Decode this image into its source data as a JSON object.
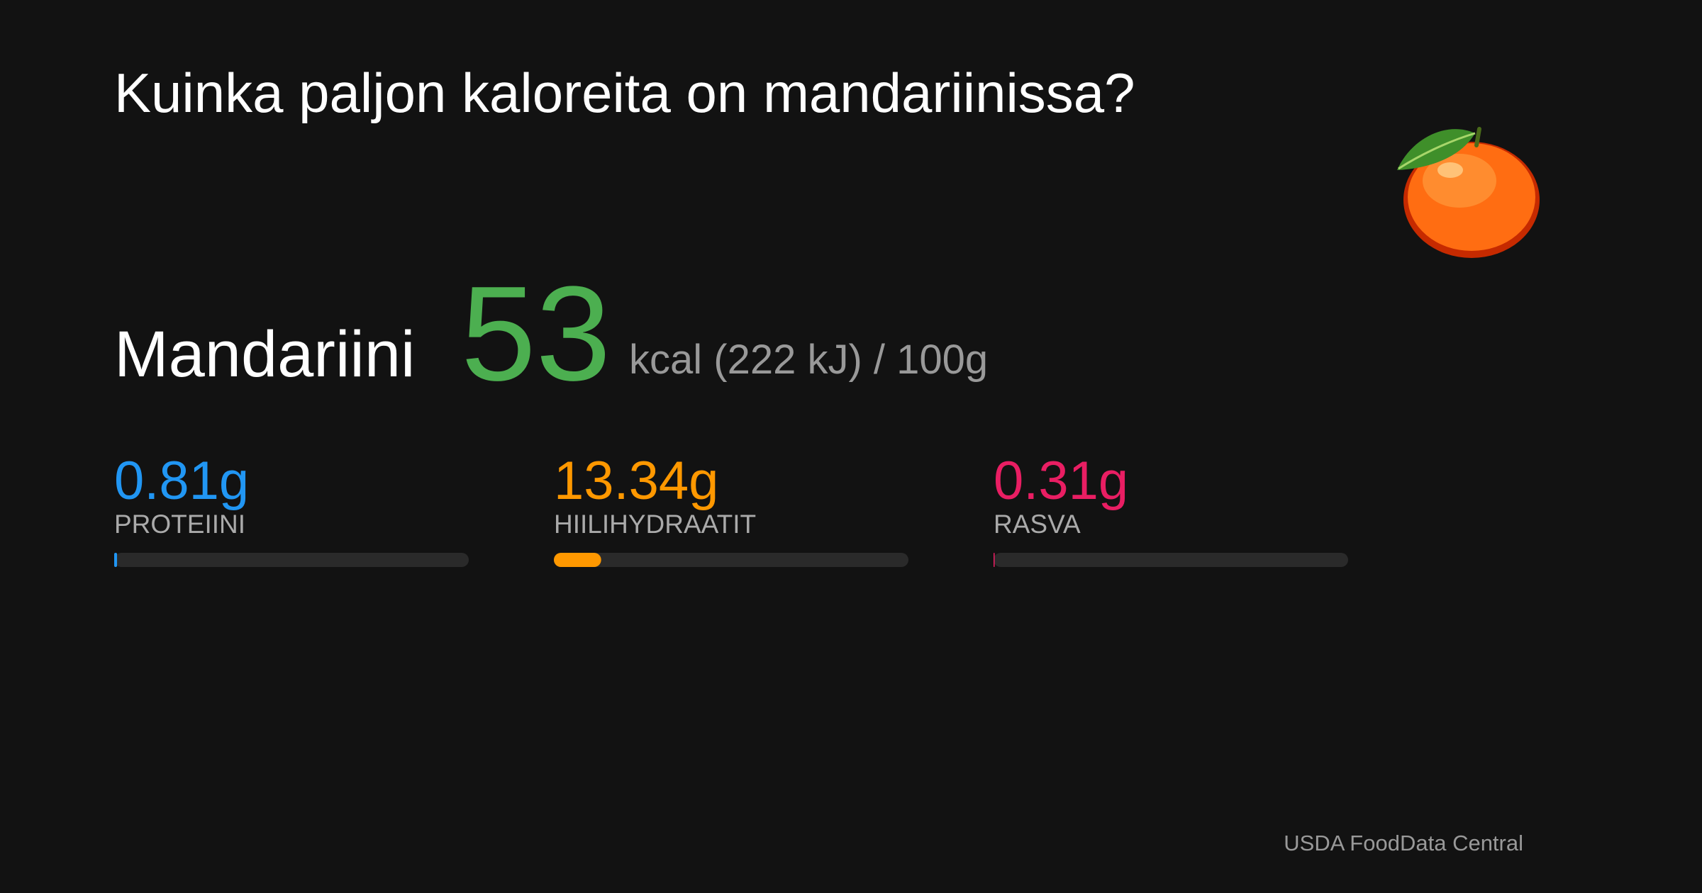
{
  "title": "Kuinka paljon kaloreita on mandariinissa?",
  "food": {
    "name": "Mandariini",
    "calories": 53,
    "unit": "kcal (222 kJ) / 100g",
    "color": "#4caf50"
  },
  "macros": {
    "xlim": [
      0,
      100
    ],
    "items": [
      {
        "name": "PROTEIINI",
        "value": 0.81,
        "value_label": "0.81g",
        "color": "#2196f3"
      },
      {
        "name": "HIILIHYDRAATIT",
        "value": 13.34,
        "value_label": "13.34g",
        "color": "#ff9800"
      },
      {
        "name": "RASVA",
        "value": 0.31,
        "value_label": "0.31g",
        "color": "#e91e63"
      }
    ]
  },
  "source": "USDA FoodData Central"
}
